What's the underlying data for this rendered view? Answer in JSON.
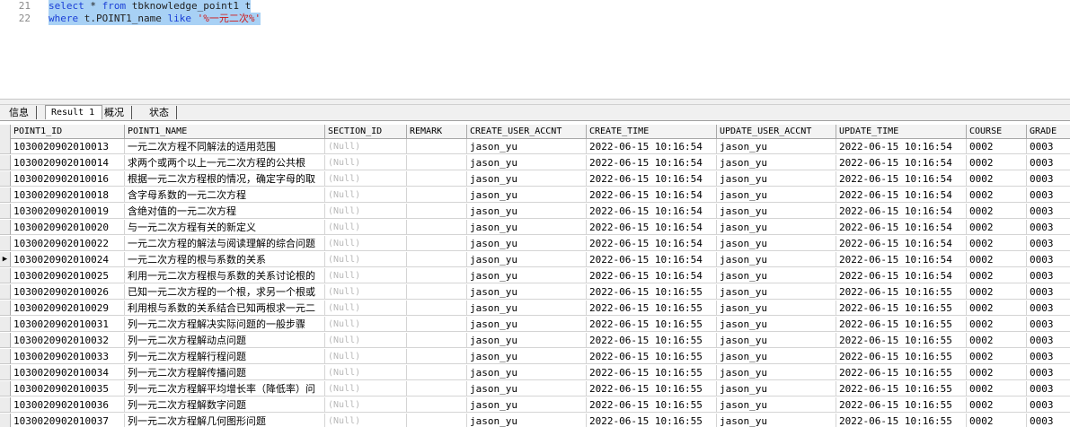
{
  "editor": {
    "lines": [
      {
        "number": "21",
        "tokens": [
          {
            "text": "select",
            "kind": "keyword"
          },
          {
            "text": " * ",
            "kind": "plain"
          },
          {
            "text": "from",
            "kind": "keyword"
          },
          {
            "text": " tbknowledge_point1 t",
            "kind": "plain"
          }
        ]
      },
      {
        "number": "22",
        "tokens": [
          {
            "text": "where",
            "kind": "keyword"
          },
          {
            "text": " t.POINT1_name ",
            "kind": "plain"
          },
          {
            "text": "like",
            "kind": "keyword"
          },
          {
            "text": " ",
            "kind": "plain"
          },
          {
            "text": "'%一元二次%'",
            "kind": "string"
          }
        ]
      }
    ]
  },
  "tabs": {
    "items": [
      "信息",
      "Result 1",
      "概况",
      "状态"
    ],
    "active": 1
  },
  "grid": {
    "columns": [
      "POINT1_ID",
      "POINT1_NAME",
      "SECTION_ID",
      "REMARK",
      "CREATE_USER_ACCNT",
      "CREATE_TIME",
      "UPDATE_USER_ACCNT",
      "UPDATE_TIME",
      "COURSE",
      "GRADE"
    ],
    "current_row": 7,
    "rows": [
      [
        "1030020902010013",
        "一元二次方程不同解法的适用范围",
        "(Null)",
        null,
        "jason_yu",
        "2022-06-15 10:16:54",
        "jason_yu",
        "2022-06-15 10:16:54",
        "0002",
        "0003"
      ],
      [
        "1030020902010014",
        "求两个或两个以上一元二次方程的公共根",
        "(Null)",
        null,
        "jason_yu",
        "2022-06-15 10:16:54",
        "jason_yu",
        "2022-06-15 10:16:54",
        "0002",
        "0003"
      ],
      [
        "1030020902010016",
        "根据一元二次方程根的情况，确定字母的取",
        "(Null)",
        null,
        "jason_yu",
        "2022-06-15 10:16:54",
        "jason_yu",
        "2022-06-15 10:16:54",
        "0002",
        "0003"
      ],
      [
        "1030020902010018",
        "含字母系数的一元二次方程",
        "(Null)",
        null,
        "jason_yu",
        "2022-06-15 10:16:54",
        "jason_yu",
        "2022-06-15 10:16:54",
        "0002",
        "0003"
      ],
      [
        "1030020902010019",
        "含绝对值的一元二次方程",
        "(Null)",
        null,
        "jason_yu",
        "2022-06-15 10:16:54",
        "jason_yu",
        "2022-06-15 10:16:54",
        "0002",
        "0003"
      ],
      [
        "1030020902010020",
        "与一元二次方程有关的新定义",
        "(Null)",
        null,
        "jason_yu",
        "2022-06-15 10:16:54",
        "jason_yu",
        "2022-06-15 10:16:54",
        "0002",
        "0003"
      ],
      [
        "1030020902010022",
        "一元二次方程的解法与阅读理解的综合问题",
        "(Null)",
        null,
        "jason_yu",
        "2022-06-15 10:16:54",
        "jason_yu",
        "2022-06-15 10:16:54",
        "0002",
        "0003"
      ],
      [
        "1030020902010024",
        "一元二次方程的根与系数的关系",
        "(Null)",
        null,
        "jason_yu",
        "2022-06-15 10:16:54",
        "jason_yu",
        "2022-06-15 10:16:54",
        "0002",
        "0003"
      ],
      [
        "1030020902010025",
        "利用一元二次方程根与系数的关系讨论根的",
        "(Null)",
        null,
        "jason_yu",
        "2022-06-15 10:16:54",
        "jason_yu",
        "2022-06-15 10:16:54",
        "0002",
        "0003"
      ],
      [
        "1030020902010026",
        "已知一元二次方程的一个根，求另一个根或",
        "(Null)",
        null,
        "jason_yu",
        "2022-06-15 10:16:55",
        "jason_yu",
        "2022-06-15 10:16:55",
        "0002",
        "0003"
      ],
      [
        "1030020902010029",
        "利用根与系数的关系结合已知两根求一元二",
        "(Null)",
        null,
        "jason_yu",
        "2022-06-15 10:16:55",
        "jason_yu",
        "2022-06-15 10:16:55",
        "0002",
        "0003"
      ],
      [
        "1030020902010031",
        "列一元二次方程解决实际问题的一般步骤",
        "(Null)",
        null,
        "jason_yu",
        "2022-06-15 10:16:55",
        "jason_yu",
        "2022-06-15 10:16:55",
        "0002",
        "0003"
      ],
      [
        "1030020902010032",
        "列一元二次方程解动点问题",
        "(Null)",
        null,
        "jason_yu",
        "2022-06-15 10:16:55",
        "jason_yu",
        "2022-06-15 10:16:55",
        "0002",
        "0003"
      ],
      [
        "1030020902010033",
        "列一元二次方程解行程问题",
        "(Null)",
        null,
        "jason_yu",
        "2022-06-15 10:16:55",
        "jason_yu",
        "2022-06-15 10:16:55",
        "0002",
        "0003"
      ],
      [
        "1030020902010034",
        "列一元二次方程解传播问题",
        "(Null)",
        null,
        "jason_yu",
        "2022-06-15 10:16:55",
        "jason_yu",
        "2022-06-15 10:16:55",
        "0002",
        "0003"
      ],
      [
        "1030020902010035",
        "列一元二次方程解平均增长率（降低率）问",
        "(Null)",
        null,
        "jason_yu",
        "2022-06-15 10:16:55",
        "jason_yu",
        "2022-06-15 10:16:55",
        "0002",
        "0003"
      ],
      [
        "1030020902010036",
        "列一元二次方程解数字问题",
        "(Null)",
        null,
        "jason_yu",
        "2022-06-15 10:16:55",
        "jason_yu",
        "2022-06-15 10:16:55",
        "0002",
        "0003"
      ],
      [
        "1030020902010037",
        "列一元二次方程解几何图形问题",
        "(Null)",
        null,
        "jason_yu",
        "2022-06-15 10:16:55",
        "jason_yu",
        "2022-06-15 10:16:55",
        "0002",
        "0003"
      ]
    ]
  }
}
